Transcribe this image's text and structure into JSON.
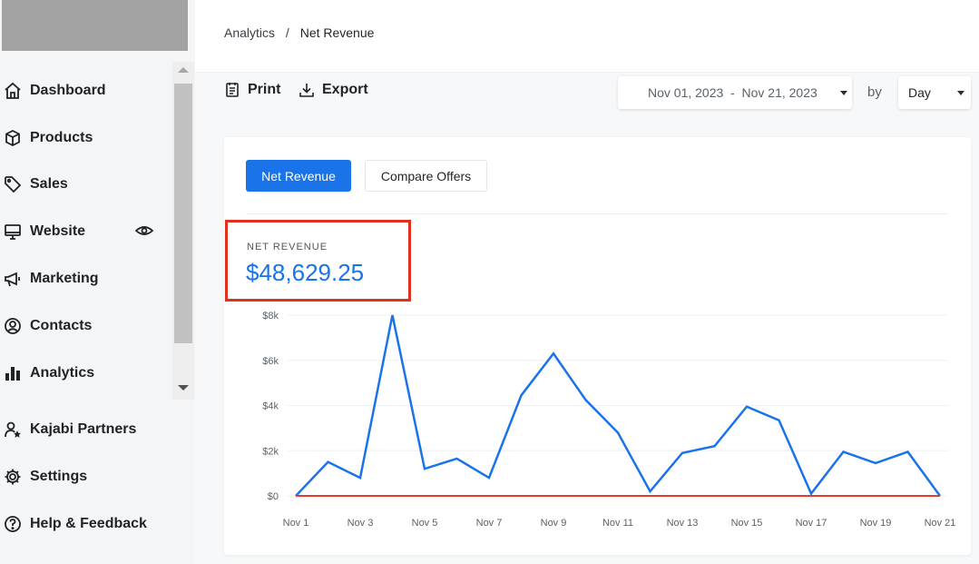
{
  "sidebar": {
    "items": [
      {
        "label": "Dashboard",
        "icon": "home-icon"
      },
      {
        "label": "Products",
        "icon": "box-icon"
      },
      {
        "label": "Sales",
        "icon": "tag-icon"
      },
      {
        "label": "Website",
        "icon": "monitor-icon"
      },
      {
        "label": "Marketing",
        "icon": "megaphone-icon"
      },
      {
        "label": "Contacts",
        "icon": "contact-icon"
      },
      {
        "label": "Analytics",
        "icon": "bar-chart-icon"
      },
      {
        "label": "Kajabi Partners",
        "icon": "partner-icon"
      },
      {
        "label": "Settings",
        "icon": "gear-icon"
      },
      {
        "label": "Help & Feedback",
        "icon": "help-icon"
      }
    ]
  },
  "breadcrumb": {
    "parent": "Analytics",
    "separator": "/",
    "current": "Net Revenue"
  },
  "toolbar": {
    "print_label": "Print",
    "export_label": "Export"
  },
  "filters": {
    "date_range": "Nov 01, 2023  -  Nov 21, 2023",
    "by_label": "by",
    "interval": "Day"
  },
  "card": {
    "tabs": {
      "active": "Net Revenue",
      "secondary": "Compare Offers"
    },
    "metric": {
      "label": "NET REVENUE",
      "value": "$48,629.25"
    }
  },
  "colors": {
    "accent": "#1a73e8",
    "line": "#1a73e8",
    "baseline": "#e53935",
    "highlight": "#e0301e"
  },
  "chart_data": {
    "type": "line",
    "title": "",
    "xlabel": "",
    "ylabel": "",
    "x_tick_labels": [
      "Nov 1",
      "Nov 3",
      "Nov 5",
      "Nov 7",
      "Nov 9",
      "Nov 11",
      "Nov 13",
      "Nov 15",
      "Nov 17",
      "Nov 19",
      "Nov 21"
    ],
    "y_tick_labels": [
      "$0",
      "$2k",
      "$4k",
      "$6k",
      "$8k"
    ],
    "ylim": [
      0,
      8000
    ],
    "grid": true,
    "categories": [
      "Nov 1",
      "Nov 2",
      "Nov 3",
      "Nov 4",
      "Nov 5",
      "Nov 6",
      "Nov 7",
      "Nov 8",
      "Nov 9",
      "Nov 10",
      "Nov 11",
      "Nov 12",
      "Nov 13",
      "Nov 14",
      "Nov 15",
      "Nov 16",
      "Nov 17",
      "Nov 18",
      "Nov 19",
      "Nov 20",
      "Nov 21"
    ],
    "series": [
      {
        "values": [
          0,
          1500,
          800,
          8000,
          1200,
          1650,
          800,
          4450,
          6300,
          4250,
          2800,
          200,
          1900,
          2200,
          3950,
          3350,
          100,
          1950,
          1450,
          1950,
          0
        ]
      },
      {
        "values": [
          0,
          0,
          0,
          0,
          0,
          0,
          0,
          0,
          0,
          0,
          0,
          0,
          0,
          0,
          0,
          0,
          0,
          0,
          0,
          0,
          0
        ]
      }
    ]
  }
}
